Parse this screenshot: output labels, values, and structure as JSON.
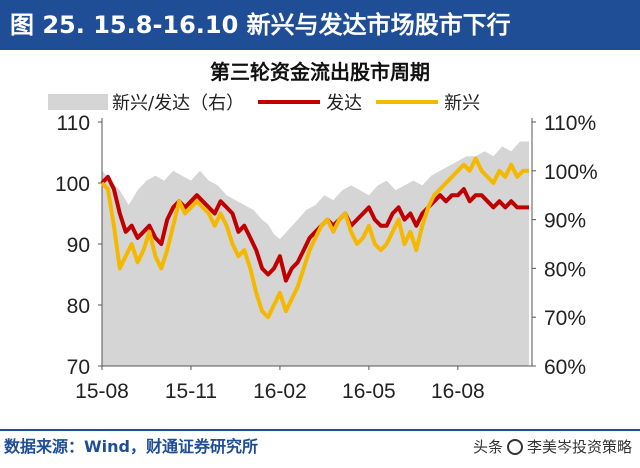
{
  "header": {
    "figure_title": "图 25. 15.8-16.10 新兴与发达市场股市下行"
  },
  "footer": {
    "source": "数据来源：Wind，财通证券研究所",
    "watermark_prefix": "头条",
    "watermark_name": "李美岑投资策略"
  },
  "colors": {
    "banner": "#1f4e97",
    "ratio_area": "#d5d5d5",
    "developed": "#c00000",
    "emerging": "#f5b800"
  },
  "chart_data": {
    "type": "line",
    "title": "第三轮资金流出股市周期",
    "x_ticks": [
      "15-08",
      "15-11",
      "16-02",
      "16-05",
      "16-08"
    ],
    "x_tick_months": [
      0,
      3,
      6,
      9,
      12
    ],
    "x_range_months": [
      0,
      14.5
    ],
    "left_axis": {
      "ticks": [
        70,
        80,
        90,
        100,
        110
      ],
      "ylim": [
        70,
        110
      ]
    },
    "right_axis": {
      "ticks": [
        "60%",
        "70%",
        "80%",
        "90%",
        "100%",
        "110%"
      ],
      "ylim": [
        60,
        110
      ]
    },
    "grid": false,
    "legend": "top",
    "series": [
      {
        "name": "新兴/发达（右）",
        "style": "area",
        "axis": "right",
        "x_months": [
          0,
          0.3,
          0.6,
          0.9,
          1.2,
          1.5,
          1.8,
          2.1,
          2.4,
          2.7,
          3.0,
          3.3,
          3.6,
          3.9,
          4.2,
          4.5,
          4.8,
          5.1,
          5.4,
          5.6,
          5.8,
          6.0,
          6.3,
          6.6,
          6.9,
          7.2,
          7.5,
          7.8,
          8.1,
          8.4,
          8.7,
          9.0,
          9.3,
          9.6,
          9.9,
          10.2,
          10.5,
          10.8,
          11.1,
          11.4,
          11.7,
          12.0,
          12.3,
          12.6,
          12.9,
          13.2,
          13.5,
          13.8,
          14.1,
          14.4
        ],
        "values": [
          100,
          98,
          96,
          93,
          96,
          98,
          99,
          98,
          100,
          99,
          98,
          100,
          98,
          97,
          95,
          94,
          93,
          92,
          90,
          89,
          87,
          86,
          88,
          90,
          92,
          93,
          95,
          94,
          96,
          97,
          96,
          95,
          97,
          98,
          96,
          97,
          98,
          97,
          99,
          100,
          101,
          102,
          103,
          103,
          104,
          103,
          105,
          104,
          106,
          106
        ]
      },
      {
        "name": "发达",
        "style": "line",
        "axis": "left",
        "x_months": [
          0,
          0.2,
          0.4,
          0.6,
          0.8,
          1.0,
          1.2,
          1.4,
          1.6,
          1.8,
          2.0,
          2.2,
          2.4,
          2.6,
          2.8,
          3.0,
          3.2,
          3.4,
          3.6,
          3.8,
          4.0,
          4.2,
          4.4,
          4.6,
          4.8,
          5.0,
          5.2,
          5.4,
          5.6,
          5.8,
          6.0,
          6.2,
          6.4,
          6.6,
          6.8,
          7.0,
          7.2,
          7.4,
          7.6,
          7.8,
          8.0,
          8.2,
          8.4,
          8.6,
          8.8,
          9.0,
          9.2,
          9.4,
          9.6,
          9.8,
          10.0,
          10.2,
          10.4,
          10.6,
          10.8,
          11.0,
          11.2,
          11.4,
          11.6,
          11.8,
          12.0,
          12.2,
          12.4,
          12.6,
          12.8,
          13.0,
          13.2,
          13.4,
          13.6,
          13.8,
          14.0,
          14.2,
          14.4
        ],
        "values": [
          100,
          101,
          99,
          95,
          92,
          93,
          91,
          92,
          93,
          91,
          90,
          94,
          96,
          97,
          96,
          97,
          98,
          97,
          96,
          95,
          97,
          96,
          95,
          92,
          93,
          91,
          89,
          86,
          85,
          86,
          88,
          84,
          86,
          87,
          89,
          91,
          92,
          93,
          94,
          93,
          94,
          95,
          93,
          94,
          95,
          96,
          94,
          93,
          93,
          95,
          96,
          94,
          95,
          93,
          95,
          96,
          97,
          98,
          97,
          98,
          98,
          99,
          97,
          98,
          98,
          97,
          96,
          97,
          96,
          97,
          96,
          96,
          96
        ]
      },
      {
        "name": "新兴",
        "style": "line",
        "axis": "left",
        "x_months": [
          0,
          0.2,
          0.4,
          0.6,
          0.8,
          1.0,
          1.2,
          1.4,
          1.6,
          1.8,
          2.0,
          2.2,
          2.4,
          2.6,
          2.8,
          3.0,
          3.2,
          3.4,
          3.6,
          3.8,
          4.0,
          4.2,
          4.4,
          4.6,
          4.8,
          5.0,
          5.2,
          5.4,
          5.6,
          5.8,
          6.0,
          6.2,
          6.4,
          6.6,
          6.8,
          7.0,
          7.2,
          7.4,
          7.6,
          7.8,
          8.0,
          8.2,
          8.4,
          8.6,
          8.8,
          9.0,
          9.2,
          9.4,
          9.6,
          9.8,
          10.0,
          10.2,
          10.4,
          10.6,
          10.8,
          11.0,
          11.2,
          11.4,
          11.6,
          11.8,
          12.0,
          12.2,
          12.4,
          12.6,
          12.8,
          13.0,
          13.2,
          13.4,
          13.6,
          13.8,
          14.0,
          14.2,
          14.4
        ],
        "values": [
          100,
          99,
          93,
          86,
          88,
          90,
          87,
          89,
          92,
          88,
          86,
          89,
          93,
          97,
          95,
          96,
          97,
          96,
          95,
          93,
          95,
          93,
          90,
          88,
          89,
          86,
          82,
          79,
          78,
          80,
          82,
          79,
          81,
          83,
          86,
          89,
          91,
          93,
          94,
          92,
          94,
          95,
          92,
          90,
          91,
          93,
          90,
          89,
          90,
          92,
          94,
          90,
          92,
          89,
          93,
          96,
          98,
          99,
          100,
          101,
          102,
          103,
          102,
          104,
          102,
          101,
          100,
          102,
          101,
          103,
          101,
          102,
          102
        ]
      }
    ]
  }
}
